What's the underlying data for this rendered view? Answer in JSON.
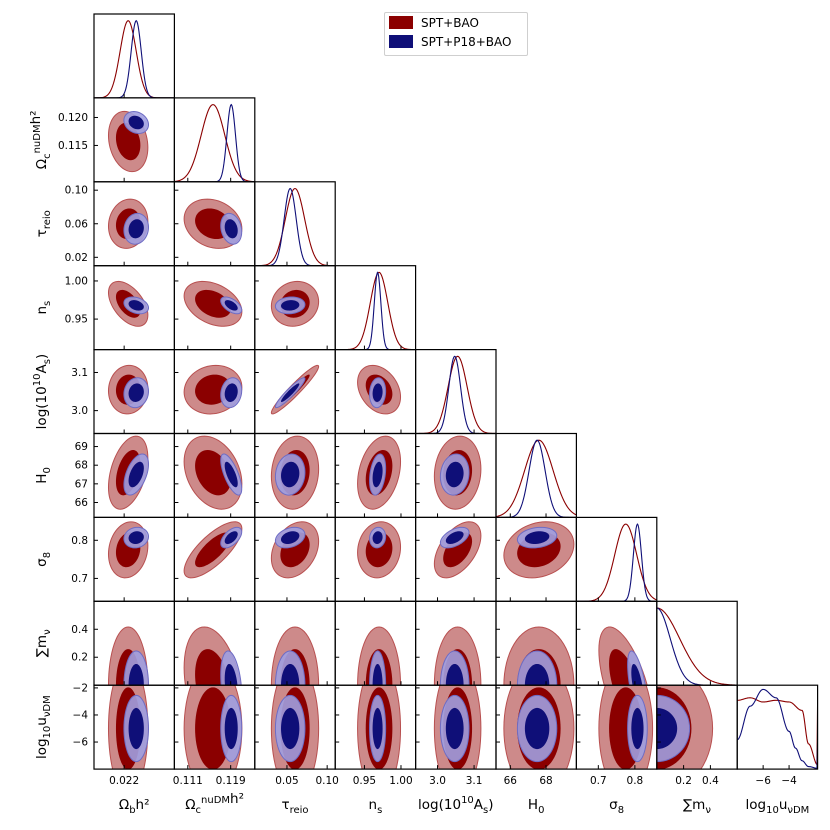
{
  "colors": {
    "series1_dark": "#8b0000",
    "series1_light": "#cd8a8a",
    "series1_edge": "#b85050",
    "series2_dark": "#0f0f78",
    "series2_light": "#a09ee0",
    "series2_edge": "#6e6cc4"
  },
  "legend": {
    "items": [
      {
        "label": "SPT+BAO",
        "color": "#8b0000"
      },
      {
        "label": "SPT+P18+BAO",
        "color": "#0f0f78"
      }
    ]
  },
  "chart_data": {
    "type": "corner",
    "title": "",
    "legend_position": "top-center",
    "parameters": [
      {
        "key": "omega_b",
        "label_main": "Ω",
        "label_sub": "b",
        "label_sup": "",
        "label_tail": "h²",
        "range": [
          0.0205,
          0.0245
        ],
        "ticks": [
          0.022
        ],
        "tick_labels": [
          "0.022"
        ],
        "mean": [
          0.0222,
          0.0226
        ],
        "sigma": [
          0.0004,
          0.00025
        ]
      },
      {
        "key": "omega_cdm",
        "label_main": "Ω",
        "label_sub": "c",
        "label_sup": "nuDM",
        "label_tail": "h²",
        "range": [
          0.1085,
          0.1235
        ],
        "ticks": [
          0.111,
          0.119
        ],
        "tick_labels": [
          "0.111",
          "0.119"
        ],
        "y_ticks": [
          0.115,
          0.12
        ],
        "y_tick_labels": [
          "0.115",
          "0.120"
        ],
        "mean": [
          0.1157,
          0.1191
        ],
        "sigma": [
          0.0022,
          0.0008
        ]
      },
      {
        "key": "tau_reio",
        "label_main": "τ",
        "label_sub": "reio",
        "label_sup": "",
        "label_tail": "",
        "range": [
          0.01,
          0.11
        ],
        "ticks": [
          0.05,
          0.1
        ],
        "tick_labels": [
          "0.05",
          "0.10"
        ],
        "y_ticks": [
          0.02,
          0.06,
          0.1
        ],
        "y_tick_labels": [
          "0.02",
          "0.06",
          "0.10"
        ],
        "mean": [
          0.06,
          0.054
        ],
        "sigma": [
          0.012,
          0.0075
        ]
      },
      {
        "key": "n_s",
        "label_main": "n",
        "label_sub": "s",
        "label_sup": "",
        "label_tail": "",
        "range": [
          0.91,
          1.02
        ],
        "ticks": [
          0.95,
          1.0
        ],
        "tick_labels": [
          "0.95",
          "1.00"
        ],
        "y_ticks": [
          0.95,
          1.0
        ],
        "y_tick_labels": [
          "0.95",
          "1.00"
        ],
        "mean": [
          0.97,
          0.968
        ],
        "sigma": [
          0.012,
          0.0045
        ]
      },
      {
        "key": "logA",
        "label_main": "log(10",
        "label_sub": "s",
        "label_sup": "10",
        "label_tail": "",
        "range": [
          2.94,
          3.16
        ],
        "ticks": [
          3.0,
          3.1
        ],
        "tick_labels": [
          "3.0",
          "3.1"
        ],
        "y_ticks": [
          3.0,
          3.1
        ],
        "y_tick_labels": [
          "3.0",
          "3.1"
        ],
        "mean": [
          3.055,
          3.047
        ],
        "sigma": [
          0.026,
          0.016
        ]
      },
      {
        "key": "H0",
        "label_main": "H",
        "label_sub": "0",
        "label_sup": "",
        "label_tail": "",
        "range": [
          65.2,
          69.7
        ],
        "ticks": [
          66,
          68
        ],
        "tick_labels": [
          "66",
          "68"
        ],
        "y_ticks": [
          66,
          67,
          68,
          69
        ],
        "y_tick_labels": [
          "66",
          "67",
          "68",
          "69"
        ],
        "mean": [
          67.6,
          67.5
        ],
        "sigma": [
          0.8,
          0.45
        ]
      },
      {
        "key": "sigma8",
        "label_main": "σ",
        "label_sub": "8",
        "label_sup": "",
        "label_tail": "",
        "range": [
          0.64,
          0.86
        ],
        "ticks": [
          0.7,
          0.8
        ],
        "tick_labels": [
          "0.7",
          "0.8"
        ],
        "y_ticks": [
          0.7,
          0.8
        ],
        "y_tick_labels": [
          "0.7",
          "0.8"
        ],
        "mean": [
          0.775,
          0.807
        ],
        "sigma": [
          0.03,
          0.011
        ]
      },
      {
        "key": "sum_mnu",
        "label_main": "∑m",
        "label_sub": "ν",
        "label_sup": "",
        "label_tail": "",
        "range": [
          0.0,
          0.6
        ],
        "ticks": [
          0.2,
          0.4
        ],
        "tick_labels": [
          "0.2",
          "0.4"
        ],
        "y_ticks": [
          0.2,
          0.4
        ],
        "y_tick_labels": [
          "0.2",
          "0.4"
        ],
        "mean": [
          0.0,
          0.0
        ],
        "sigma": [
          0.17,
          0.1
        ]
      },
      {
        "key": "log10_u",
        "label_main": "log",
        "label_sub": "10",
        "label_sup": "",
        "label_tail": "u",
        "label_tail_sub": "νDM",
        "range": [
          -8.0,
          -1.8
        ],
        "ticks": [
          -6,
          -4
        ],
        "tick_labels": [
          "−6",
          "−4"
        ],
        "y_ticks": [
          -6,
          -4,
          -2
        ],
        "y_tick_labels": [
          "−6",
          "−4",
          "−2"
        ],
        "mean": [
          -5.0,
          -5.0
        ],
        "sigma": [
          2.0,
          1.0
        ]
      }
    ],
    "correlations": {
      "omega_b|omega_cdm": [
        -0.2,
        -0.2
      ],
      "omega_b|tau_reio": [
        0.1,
        0.1
      ],
      "omega_b|n_s": [
        -0.5,
        -0.3
      ],
      "omega_b|logA": [
        0.05,
        0.1
      ],
      "omega_b|H0": [
        0.4,
        0.5
      ],
      "omega_b|sigma8": [
        0.15,
        0.1
      ],
      "omega_cdm|tau_reio": [
        -0.2,
        -0.2
      ],
      "omega_cdm|n_s": [
        -0.35,
        -0.55
      ],
      "omega_cdm|logA": [
        0.1,
        0.15
      ],
      "omega_cdm|H0": [
        -0.3,
        -0.7
      ],
      "omega_cdm|sigma8": [
        0.75,
        0.55
      ],
      "omega_cdm|sum_mnu": [
        -0.3,
        -0.3
      ],
      "tau_reio|n_s": [
        0.1,
        0.1
      ],
      "tau_reio|logA": [
        0.95,
        0.93
      ],
      "tau_reio|H0": [
        0.1,
        0.1
      ],
      "tau_reio|sigma8": [
        0.3,
        0.3
      ],
      "n_s|logA": [
        -0.3,
        0.1
      ],
      "n_s|H0": [
        0.3,
        0.3
      ],
      "n_s|sigma8": [
        0.1,
        0.1
      ],
      "logA|H0": [
        0.1,
        0.1
      ],
      "logA|sigma8": [
        0.5,
        0.5
      ],
      "H0|sigma8": [
        0.2,
        0.2
      ],
      "sigma8|sum_mnu": [
        -0.6,
        -0.6
      ]
    },
    "series": [
      {
        "name": "SPT+BAO"
      },
      {
        "name": "SPT+P18+BAO"
      }
    ],
    "extra_1d": {
      "series1": {
        "x": [
          -8.0,
          -7.0,
          -6.0,
          -5.0,
          -4.0,
          -3.0,
          -2.5,
          -1.8
        ],
        "y": [
          0.82,
          0.85,
          0.8,
          0.82,
          0.8,
          0.7,
          0.3,
          0.05
        ]
      },
      "series2": {
        "x": [
          -8.0,
          -7.0,
          -6.0,
          -5.0,
          -4.0,
          -3.5,
          -3.0,
          -2.5,
          -1.8
        ],
        "y": [
          0.35,
          0.75,
          0.95,
          0.85,
          0.45,
          0.25,
          0.1,
          0.03,
          0.01
        ]
      }
    }
  }
}
